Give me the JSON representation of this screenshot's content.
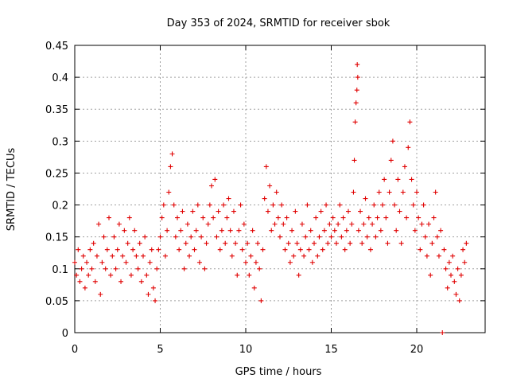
{
  "chart_data": {
    "type": "scatter",
    "title": "Day 353 of 2024, SRMTID for receiver sbok",
    "xlabel": "GPS time / hours",
    "ylabel": "SRMTID / TECUs",
    "xlim": [
      0,
      24
    ],
    "ylim": [
      0,
      0.45
    ],
    "xticks": [
      0,
      5,
      10,
      15,
      20
    ],
    "xtick_labels": [
      "0",
      "5",
      "10",
      "15",
      "20"
    ],
    "yticks": [
      0,
      0.05,
      0.1,
      0.15,
      0.2,
      0.25,
      0.3,
      0.35,
      0.4,
      0.45
    ],
    "ytick_labels": [
      "0",
      "0.05",
      "0.1",
      "0.15",
      "0.2",
      "0.25",
      "0.3",
      "0.35",
      "0.4",
      "0.45"
    ],
    "grid": true,
    "marker": "+",
    "color": "#e00000",
    "series": [
      {
        "name": "SRMTID",
        "points": [
          [
            0.0,
            0.11
          ],
          [
            0.1,
            0.09
          ],
          [
            0.2,
            0.13
          ],
          [
            0.3,
            0.08
          ],
          [
            0.4,
            0.1
          ],
          [
            0.5,
            0.12
          ],
          [
            0.6,
            0.07
          ],
          [
            0.7,
            0.11
          ],
          [
            0.8,
            0.09
          ],
          [
            0.9,
            0.13
          ],
          [
            1.0,
            0.1
          ],
          [
            1.1,
            0.14
          ],
          [
            1.2,
            0.08
          ],
          [
            1.3,
            0.12
          ],
          [
            1.4,
            0.17
          ],
          [
            1.5,
            0.06
          ],
          [
            1.6,
            0.11
          ],
          [
            1.7,
            0.15
          ],
          [
            1.8,
            0.1
          ],
          [
            1.9,
            0.13
          ],
          [
            2.0,
            0.18
          ],
          [
            2.1,
            0.09
          ],
          [
            2.2,
            0.12
          ],
          [
            2.3,
            0.15
          ],
          [
            2.4,
            0.1
          ],
          [
            2.5,
            0.13
          ],
          [
            2.6,
            0.17
          ],
          [
            2.7,
            0.08
          ],
          [
            2.8,
            0.12
          ],
          [
            2.9,
            0.16
          ],
          [
            3.0,
            0.11
          ],
          [
            3.1,
            0.14
          ],
          [
            3.2,
            0.18
          ],
          [
            3.3,
            0.09
          ],
          [
            3.4,
            0.13
          ],
          [
            3.5,
            0.16
          ],
          [
            3.6,
            0.12
          ],
          [
            3.7,
            0.1
          ],
          [
            3.8,
            0.14
          ],
          [
            3.9,
            0.08
          ],
          [
            4.0,
            0.12
          ],
          [
            4.1,
            0.15
          ],
          [
            4.2,
            0.09
          ],
          [
            4.3,
            0.06
          ],
          [
            4.4,
            0.11
          ],
          [
            4.5,
            0.13
          ],
          [
            4.6,
            0.07
          ],
          [
            4.7,
            0.05
          ],
          [
            4.8,
            0.1
          ],
          [
            4.9,
            0.13
          ],
          [
            5.0,
            0.15
          ],
          [
            5.1,
            0.18
          ],
          [
            5.2,
            0.2
          ],
          [
            5.3,
            0.12
          ],
          [
            5.4,
            0.16
          ],
          [
            5.5,
            0.22
          ],
          [
            5.6,
            0.26
          ],
          [
            5.7,
            0.28
          ],
          [
            5.8,
            0.2
          ],
          [
            5.9,
            0.15
          ],
          [
            6.0,
            0.18
          ],
          [
            6.1,
            0.13
          ],
          [
            6.2,
            0.16
          ],
          [
            6.3,
            0.19
          ],
          [
            6.4,
            0.1
          ],
          [
            6.5,
            0.14
          ],
          [
            6.6,
            0.17
          ],
          [
            6.7,
            0.12
          ],
          [
            6.8,
            0.15
          ],
          [
            6.9,
            0.19
          ],
          [
            7.0,
            0.13
          ],
          [
            7.1,
            0.16
          ],
          [
            7.2,
            0.2
          ],
          [
            7.3,
            0.11
          ],
          [
            7.4,
            0.15
          ],
          [
            7.5,
            0.18
          ],
          [
            7.6,
            0.1
          ],
          [
            7.7,
            0.14
          ],
          [
            7.8,
            0.17
          ],
          [
            7.9,
            0.2
          ],
          [
            8.0,
            0.23
          ],
          [
            8.1,
            0.18
          ],
          [
            8.2,
            0.24
          ],
          [
            8.3,
            0.15
          ],
          [
            8.4,
            0.19
          ],
          [
            8.5,
            0.13
          ],
          [
            8.6,
            0.16
          ],
          [
            8.7,
            0.2
          ],
          [
            8.8,
            0.14
          ],
          [
            8.9,
            0.18
          ],
          [
            9.0,
            0.21
          ],
          [
            9.1,
            0.16
          ],
          [
            9.2,
            0.12
          ],
          [
            9.3,
            0.19
          ],
          [
            9.4,
            0.14
          ],
          [
            9.5,
            0.09
          ],
          [
            9.6,
            0.16
          ],
          [
            9.7,
            0.2
          ],
          [
            9.8,
            0.13
          ],
          [
            9.9,
            0.17
          ],
          [
            10.0,
            0.11
          ],
          [
            10.1,
            0.14
          ],
          [
            10.2,
            0.09
          ],
          [
            10.3,
            0.12
          ],
          [
            10.4,
            0.16
          ],
          [
            10.5,
            0.07
          ],
          [
            10.6,
            0.11
          ],
          [
            10.7,
            0.14
          ],
          [
            10.8,
            0.1
          ],
          [
            10.9,
            0.05
          ],
          [
            11.0,
            0.13
          ],
          [
            11.1,
            0.21
          ],
          [
            11.2,
            0.26
          ],
          [
            11.3,
            0.19
          ],
          [
            11.4,
            0.23
          ],
          [
            11.5,
            0.16
          ],
          [
            11.6,
            0.2
          ],
          [
            11.7,
            0.17
          ],
          [
            11.8,
            0.22
          ],
          [
            11.9,
            0.18
          ],
          [
            12.0,
            0.15
          ],
          [
            12.1,
            0.2
          ],
          [
            12.2,
            0.17
          ],
          [
            12.3,
            0.13
          ],
          [
            12.4,
            0.18
          ],
          [
            12.5,
            0.14
          ],
          [
            12.6,
            0.11
          ],
          [
            12.7,
            0.16
          ],
          [
            12.8,
            0.12
          ],
          [
            12.9,
            0.19
          ],
          [
            13.0,
            0.14
          ],
          [
            13.1,
            0.09
          ],
          [
            13.2,
            0.13
          ],
          [
            13.3,
            0.17
          ],
          [
            13.4,
            0.12
          ],
          [
            13.5,
            0.15
          ],
          [
            13.6,
            0.2
          ],
          [
            13.7,
            0.13
          ],
          [
            13.8,
            0.16
          ],
          [
            13.9,
            0.11
          ],
          [
            14.0,
            0.14
          ],
          [
            14.1,
            0.18
          ],
          [
            14.2,
            0.12
          ],
          [
            14.3,
            0.15
          ],
          [
            14.4,
            0.19
          ],
          [
            14.5,
            0.13
          ],
          [
            14.6,
            0.16
          ],
          [
            14.7,
            0.2
          ],
          [
            14.8,
            0.14
          ],
          [
            14.9,
            0.17
          ],
          [
            15.0,
            0.15
          ],
          [
            15.1,
            0.18
          ],
          [
            15.2,
            0.16
          ],
          [
            15.3,
            0.14
          ],
          [
            15.4,
            0.17
          ],
          [
            15.5,
            0.2
          ],
          [
            15.6,
            0.15
          ],
          [
            15.7,
            0.18
          ],
          [
            15.8,
            0.13
          ],
          [
            15.9,
            0.16
          ],
          [
            16.0,
            0.19
          ],
          [
            16.1,
            0.14
          ],
          [
            16.2,
            0.17
          ],
          [
            16.3,
            0.22
          ],
          [
            16.35,
            0.27
          ],
          [
            16.4,
            0.33
          ],
          [
            16.45,
            0.36
          ],
          [
            16.5,
            0.38
          ],
          [
            16.52,
            0.42
          ],
          [
            16.55,
            0.4
          ],
          [
            16.6,
            0.16
          ],
          [
            16.7,
            0.19
          ],
          [
            16.8,
            0.14
          ],
          [
            16.9,
            0.17
          ],
          [
            17.0,
            0.21
          ],
          [
            17.1,
            0.15
          ],
          [
            17.2,
            0.18
          ],
          [
            17.3,
            0.13
          ],
          [
            17.4,
            0.17
          ],
          [
            17.5,
            0.2
          ],
          [
            17.6,
            0.15
          ],
          [
            17.7,
            0.18
          ],
          [
            17.8,
            0.22
          ],
          [
            17.9,
            0.16
          ],
          [
            18.0,
            0.2
          ],
          [
            18.1,
            0.24
          ],
          [
            18.2,
            0.18
          ],
          [
            18.3,
            0.14
          ],
          [
            18.4,
            0.22
          ],
          [
            18.5,
            0.27
          ],
          [
            18.6,
            0.3
          ],
          [
            18.7,
            0.2
          ],
          [
            18.8,
            0.16
          ],
          [
            18.9,
            0.24
          ],
          [
            19.0,
            0.19
          ],
          [
            19.1,
            0.14
          ],
          [
            19.2,
            0.22
          ],
          [
            19.3,
            0.26
          ],
          [
            19.4,
            0.18
          ],
          [
            19.5,
            0.29
          ],
          [
            19.6,
            0.33
          ],
          [
            19.7,
            0.24
          ],
          [
            19.8,
            0.2
          ],
          [
            19.9,
            0.16
          ],
          [
            20.0,
            0.22
          ],
          [
            20.1,
            0.18
          ],
          [
            20.2,
            0.13
          ],
          [
            20.3,
            0.17
          ],
          [
            20.4,
            0.2
          ],
          [
            20.5,
            0.15
          ],
          [
            20.6,
            0.12
          ],
          [
            20.7,
            0.17
          ],
          [
            20.8,
            0.09
          ],
          [
            20.9,
            0.14
          ],
          [
            21.0,
            0.18
          ],
          [
            21.1,
            0.22
          ],
          [
            21.2,
            0.15
          ],
          [
            21.3,
            0.12
          ],
          [
            21.4,
            0.16
          ],
          [
            21.5,
            0.0
          ],
          [
            21.6,
            0.13
          ],
          [
            21.7,
            0.1
          ],
          [
            21.8,
            0.07
          ],
          [
            21.9,
            0.11
          ],
          [
            22.0,
            0.09
          ],
          [
            22.1,
            0.12
          ],
          [
            22.2,
            0.08
          ],
          [
            22.3,
            0.06
          ],
          [
            22.4,
            0.1
          ],
          [
            22.5,
            0.05
          ],
          [
            22.6,
            0.09
          ],
          [
            22.7,
            0.13
          ],
          [
            22.8,
            0.11
          ],
          [
            22.9,
            0.14
          ]
        ]
      }
    ]
  }
}
